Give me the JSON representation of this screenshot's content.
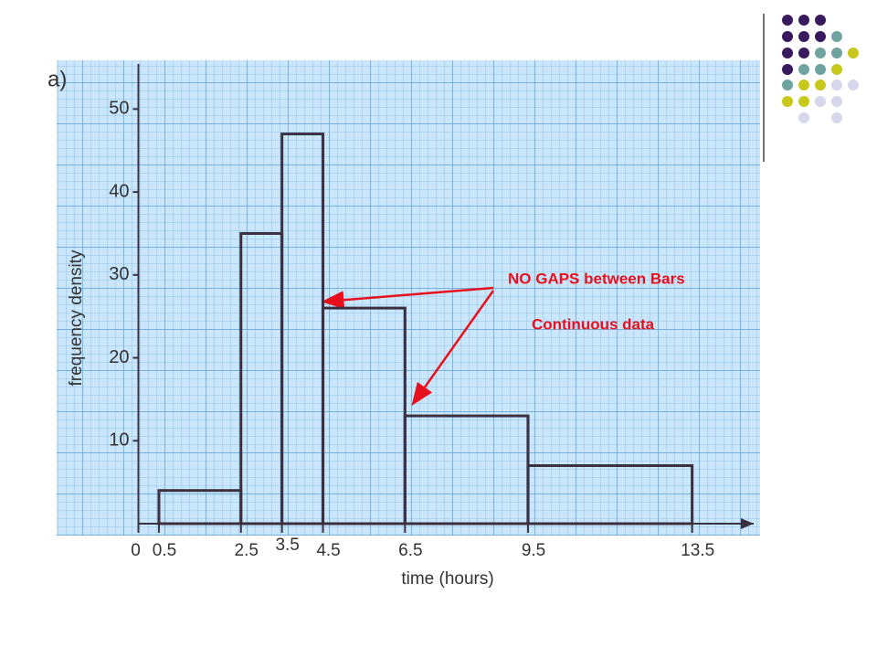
{
  "part_label": "a)",
  "chart_data": {
    "type": "histogram",
    "x_label": "time (hours)",
    "y_label": "frequency density",
    "bins": [
      0.5,
      2.5,
      3.5,
      4.5,
      6.5,
      9.5,
      13.5
    ],
    "values": [
      4,
      35,
      47,
      26,
      13,
      7
    ],
    "color": "#3a3040",
    "xlim": [
      0,
      15
    ],
    "ylim": [
      0,
      55
    ],
    "xticks": [
      0,
      0.5,
      2.5,
      3.5,
      4.5,
      6.5,
      9.5,
      13.5
    ],
    "yticks": [
      10,
      20,
      30,
      40,
      50
    ],
    "annotations": [
      "NO GAPS between Bars",
      "Continuous data"
    ]
  }
}
